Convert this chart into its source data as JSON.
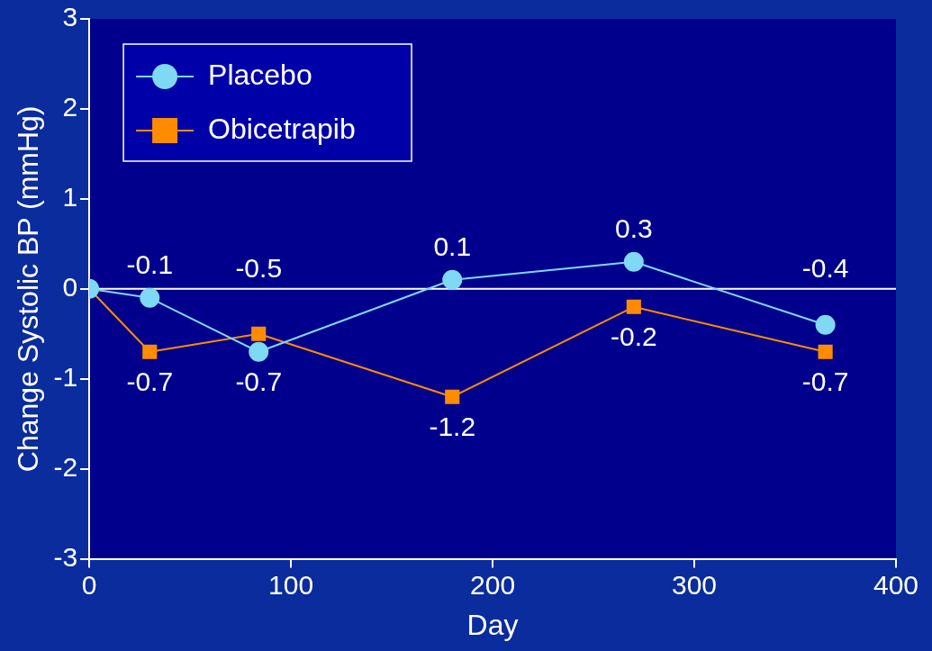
{
  "chart_data": {
    "type": "line",
    "xlabel": "Day",
    "ylabel": "Change Systolic BP (mmHg)",
    "x": [
      0,
      30,
      84,
      180,
      270,
      365
    ],
    "series": [
      {
        "name": "Placebo",
        "color": "#7fd8f4",
        "marker": "circle",
        "values": [
          0,
          -0.1,
          -0.7,
          0.1,
          0.3,
          -0.4
        ],
        "value_labels": [
          null,
          "-0.1",
          "-0.7",
          "0.1",
          "0.3",
          "-0.4"
        ]
      },
      {
        "name": "Obicetrapib",
        "color": "#ff8c00",
        "marker": "square",
        "values": [
          0,
          -0.7,
          -0.5,
          -1.2,
          -0.2,
          -0.7
        ],
        "value_labels": [
          null,
          "-0.7",
          "-0.5",
          "-1.2",
          "-0.2",
          "-0.7"
        ]
      }
    ],
    "xlim": [
      0,
      400
    ],
    "xticks": [
      0,
      100,
      200,
      300,
      400
    ],
    "ylim": [
      -3,
      3
    ],
    "yticks": [
      -3,
      -2,
      -1,
      0,
      1,
      2,
      3
    ],
    "ref_lines": [
      {
        "axis": "y",
        "value": 0,
        "color": "#ffffff"
      }
    ],
    "grid": false,
    "legend": "top left"
  }
}
